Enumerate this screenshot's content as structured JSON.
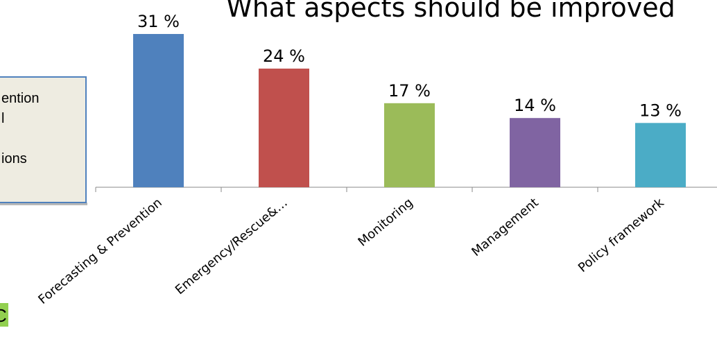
{
  "chart_data": {
    "type": "bar",
    "title": "What aspects should be improved",
    "categories": [
      "Forecasting & Prevention",
      "Emergency/Rescue&…",
      "Monitoring",
      "Management",
      "Policy framework"
    ],
    "values": [
      31,
      24,
      17,
      14,
      13
    ],
    "data_labels": [
      "31 %",
      "24 %",
      "17 %",
      "14 %",
      "13 %"
    ],
    "unit": "%",
    "ylim": [
      0,
      31
    ],
    "grid": false,
    "xlabel": "",
    "ylabel": "",
    "colors": [
      "#4F81BD",
      "#C0504D",
      "#9BBB59",
      "#8064A2",
      "#4BACC6"
    ]
  },
  "side_note": {
    "lines": [
      "ention",
      "l",
      "",
      "ions"
    ],
    "background": "#EEECE1",
    "border": "#4F81BD"
  },
  "side_tag": {
    "text": "C",
    "background": "#92D050"
  }
}
